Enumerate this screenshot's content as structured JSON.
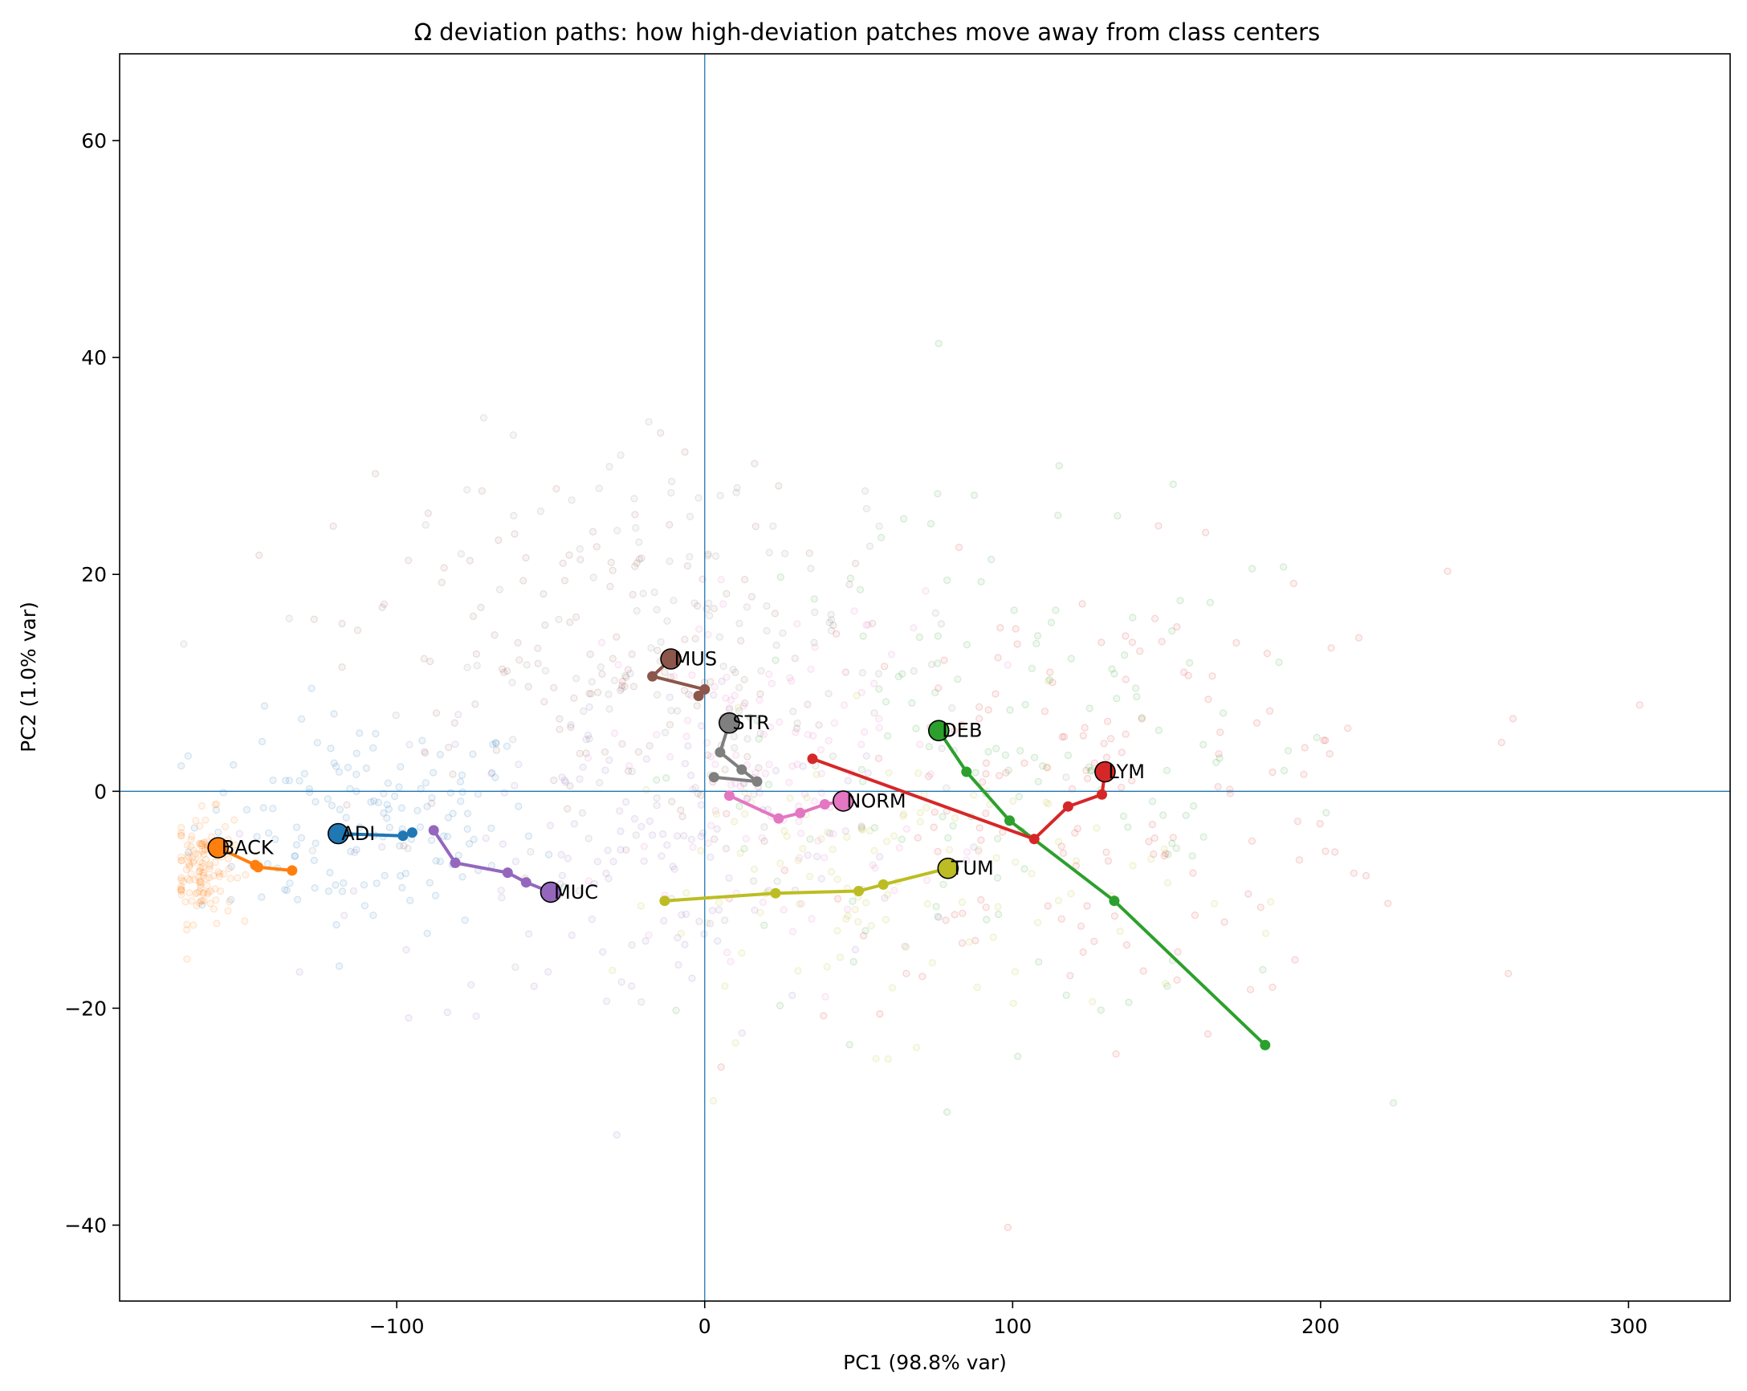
{
  "chart_data": {
    "type": "scatter",
    "title": "Ω deviation paths: how high-deviation patches move away from class centers",
    "xlabel": "PC1 (98.8% var)",
    "ylabel": "PC2 (1.0% var)",
    "xlim": [
      -190,
      333
    ],
    "ylim": [
      -47,
      68
    ],
    "xticks": [
      -100,
      0,
      100,
      200,
      300
    ],
    "yticks": [
      -40,
      -20,
      0,
      20,
      40,
      60
    ],
    "xtick_labels": [
      "−100",
      "0",
      "100",
      "200",
      "300"
    ],
    "ytick_labels": [
      "−40",
      "−20",
      "0",
      "20",
      "40",
      "60"
    ],
    "reference_lines": {
      "x": 0,
      "y": 0,
      "color": "#1f77b4"
    },
    "background_points_note": "faint per-patch points colored by class",
    "series": [
      {
        "name": "ADI",
        "color": "#1f77b4",
        "center": [
          -119,
          -3.9
        ],
        "path": [
          [
            -119,
            -3.9
          ],
          [
            -98,
            -4.1
          ],
          [
            -95,
            -3.8
          ]
        ],
        "cloud": {
          "cx": -110,
          "cy": -3,
          "sx": 28,
          "sy": 5,
          "n": 150
        }
      },
      {
        "name": "BACK",
        "color": "#ff7f0e",
        "center": [
          -158,
          -5.2
        ],
        "path": [
          [
            -158,
            -5.2
          ],
          [
            -146,
            -6.8
          ],
          [
            -145,
            -7.0
          ],
          [
            -134,
            -7.3
          ]
        ],
        "cloud": {
          "cx": -163,
          "cy": -7,
          "sx": 5,
          "sy": 2.5,
          "n": 130
        }
      },
      {
        "name": "DEB",
        "color": "#2ca02c",
        "center": [
          76,
          5.6
        ],
        "path": [
          [
            76,
            5.6
          ],
          [
            85,
            1.8
          ],
          [
            99,
            -2.7
          ],
          [
            133,
            -10.1
          ],
          [
            182,
            -23.4
          ]
        ],
        "cloud": {
          "cx": 100,
          "cy": 2,
          "sx": 55,
          "sy": 12,
          "n": 140
        }
      },
      {
        "name": "LYM",
        "color": "#d62728",
        "center": [
          130,
          1.8
        ],
        "path": [
          [
            130,
            1.8
          ],
          [
            129,
            -0.3
          ],
          [
            118,
            -1.4
          ],
          [
            107,
            -4.4
          ],
          [
            35,
            3.0
          ]
        ],
        "cloud": {
          "cx": 130,
          "cy": 0,
          "sx": 55,
          "sy": 10,
          "n": 160
        }
      },
      {
        "name": "MUC",
        "color": "#9467bd",
        "center": [
          -50,
          -9.3
        ],
        "path": [
          [
            -50,
            -9.3
          ],
          [
            -58,
            -8.4
          ],
          [
            -64,
            -7.5
          ],
          [
            -81,
            -6.6
          ],
          [
            -88,
            -3.6
          ]
        ],
        "cloud": {
          "cx": -20,
          "cy": -6,
          "sx": 45,
          "sy": 9,
          "n": 130
        }
      },
      {
        "name": "MUS",
        "color": "#8c564b",
        "center": [
          -11,
          12.2
        ],
        "path": [
          [
            -11,
            12.2
          ],
          [
            -17,
            10.6
          ],
          [
            0,
            9.4
          ],
          [
            -2,
            8.8
          ]
        ],
        "cloud": {
          "cx": -40,
          "cy": 12,
          "sx": 40,
          "sy": 9,
          "n": 150
        }
      },
      {
        "name": "NORM",
        "color": "#e377c2",
        "center": [
          45,
          -0.9
        ],
        "path": [
          [
            45,
            -0.9
          ],
          [
            39,
            -1.2
          ],
          [
            31,
            -2.0
          ],
          [
            24,
            -2.5
          ],
          [
            8,
            -0.4
          ]
        ],
        "cloud": {
          "cx": 25,
          "cy": 2,
          "sx": 28,
          "sy": 8,
          "n": 120
        }
      },
      {
        "name": "STR",
        "color": "#7f7f7f",
        "center": [
          8,
          6.3
        ],
        "path": [
          [
            8,
            6.3
          ],
          [
            5,
            3.6
          ],
          [
            12,
            2.0
          ],
          [
            17,
            0.9
          ],
          [
            3,
            1.3
          ]
        ],
        "cloud": {
          "cx": 0,
          "cy": 12,
          "sx": 45,
          "sy": 10,
          "n": 140
        }
      },
      {
        "name": "TUM",
        "color": "#bcbd22",
        "center": [
          79,
          -7.1
        ],
        "path": [
          [
            79,
            -7.1
          ],
          [
            58,
            -8.6
          ],
          [
            50,
            -9.2
          ],
          [
            23,
            -9.4
          ],
          [
            -13,
            -10.1
          ]
        ],
        "cloud": {
          "cx": 60,
          "cy": -8,
          "sx": 45,
          "sy": 7,
          "n": 120
        }
      }
    ]
  }
}
